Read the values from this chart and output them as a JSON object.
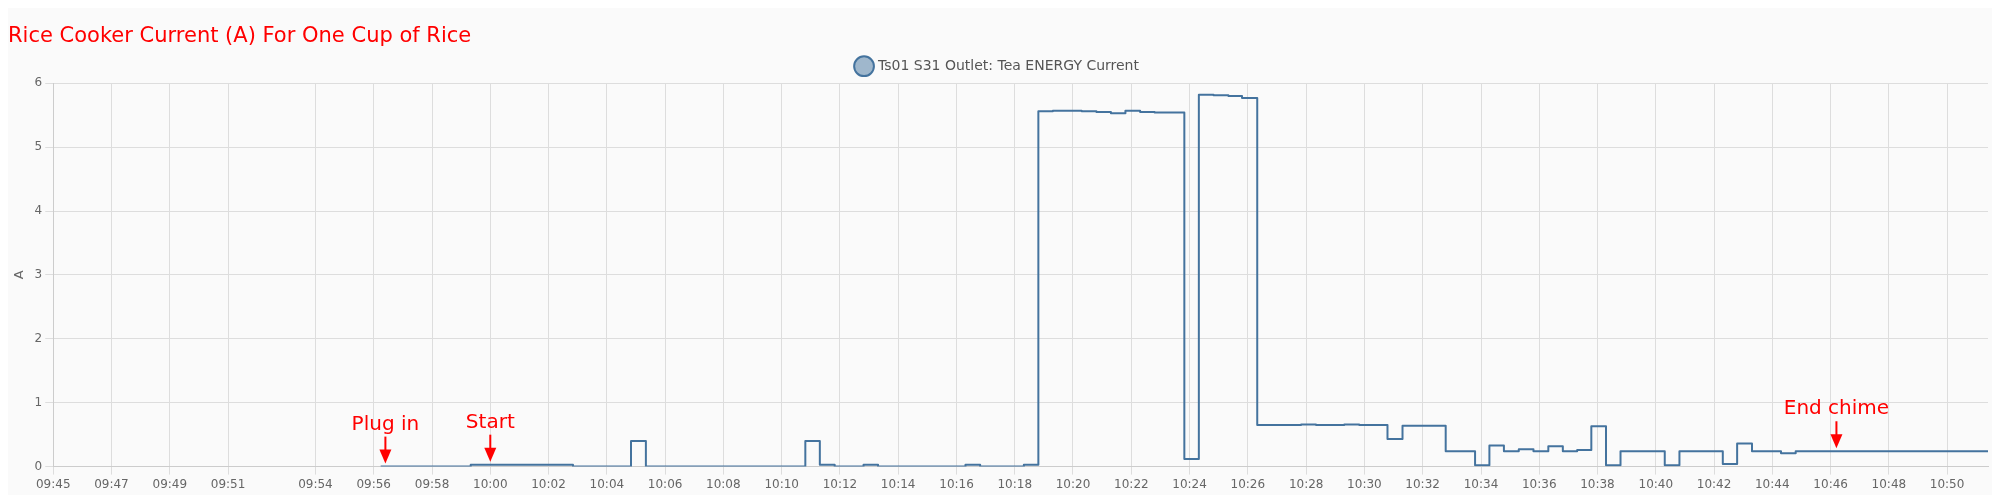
{
  "chart_data": {
    "type": "step",
    "title": "Rice Cooker Current (A) For One Cup of Rice",
    "ylabel": "A",
    "legend": "top",
    "grid": true,
    "marker": "none",
    "line_style": "solid",
    "xlim": [
      9.75,
      10.8567
    ],
    "ylim": [
      0,
      6
    ],
    "yticks": [
      0,
      1,
      2,
      3,
      4,
      5,
      6
    ],
    "xticks": [
      {
        "value": 9.75,
        "label": "09:45"
      },
      {
        "value": 9.7833,
        "label": "09:47"
      },
      {
        "value": 9.8167,
        "label": "09:49"
      },
      {
        "value": 9.85,
        "label": "09:51"
      },
      {
        "value": 9.9,
        "label": "09:54"
      },
      {
        "value": 9.9333,
        "label": "09:56"
      },
      {
        "value": 9.9667,
        "label": "09:58"
      },
      {
        "value": 10,
        "label": "10:00"
      },
      {
        "value": 10.0333,
        "label": "10:02"
      },
      {
        "value": 10.0667,
        "label": "10:04"
      },
      {
        "value": 10.1,
        "label": "10:06"
      },
      {
        "value": 10.1333,
        "label": "10:08"
      },
      {
        "value": 10.1667,
        "label": "10:10"
      },
      {
        "value": 10.2,
        "label": "10:12"
      },
      {
        "value": 10.2333,
        "label": "10:14"
      },
      {
        "value": 10.2667,
        "label": "10:16"
      },
      {
        "value": 10.3,
        "label": "10:18"
      },
      {
        "value": 10.3333,
        "label": "10:20"
      },
      {
        "value": 10.3667,
        "label": "10:22"
      },
      {
        "value": 10.4,
        "label": "10:24"
      },
      {
        "value": 10.4333,
        "label": "10:26"
      },
      {
        "value": 10.4667,
        "label": "10:28"
      },
      {
        "value": 10.5,
        "label": "10:30"
      },
      {
        "value": 10.5333,
        "label": "10:32"
      },
      {
        "value": 10.5667,
        "label": "10:34"
      },
      {
        "value": 10.6,
        "label": "10:36"
      },
      {
        "value": 10.6333,
        "label": "10:38"
      },
      {
        "value": 10.6667,
        "label": "10:40"
      },
      {
        "value": 10.7,
        "label": "10:42"
      },
      {
        "value": 10.7333,
        "label": "10:44"
      },
      {
        "value": 10.7667,
        "label": "10:46"
      },
      {
        "value": 10.8,
        "label": "10:48"
      },
      {
        "value": 10.8333,
        "label": "10:50"
      }
    ],
    "series": [
      {
        "name": "Ts01 S31 Outlet: Tea ENERGY Current",
        "color": "#44739e",
        "x": [
          9.9373,
          9.9888,
          10.0473,
          10.0805,
          10.089,
          10.1802,
          10.1885,
          10.197,
          10.2135,
          10.2218,
          10.2718,
          10.2802,
          10.3052,
          10.3135,
          10.3218,
          10.3383,
          10.3467,
          10.355,
          10.3633,
          10.3717,
          10.38,
          10.397,
          10.4053,
          10.4137,
          10.4222,
          10.43,
          10.4387,
          10.4638,
          10.4723,
          10.4885,
          10.497,
          10.5132,
          10.5218,
          10.5465,
          10.5633,
          10.5715,
          10.5798,
          10.5883,
          10.5967,
          10.6052,
          10.6135,
          10.6217,
          10.6298,
          10.6382,
          10.6465,
          10.6718,
          10.6802,
          10.705,
          10.7132,
          10.7217,
          10.7383,
          10.7467,
          10.8567
        ],
        "values": [
          0,
          0.03,
          0,
          0.4,
          0,
          0.4,
          0.03,
          0,
          0.03,
          0,
          0.03,
          0,
          0.03,
          5.56,
          5.57,
          5.56,
          5.55,
          5.53,
          5.57,
          5.55,
          5.54,
          0.12,
          5.82,
          5.81,
          5.8,
          5.77,
          0.65,
          0.66,
          0.65,
          0.66,
          0.65,
          0.43,
          0.64,
          0.24,
          0.02,
          0.33,
          0.24,
          0.27,
          0.24,
          0.32,
          0.24,
          0.26,
          0.63,
          0.02,
          0.24,
          0.02,
          0.24,
          0.04,
          0.36,
          0.24,
          0.21,
          0.24,
          0.24
        ]
      }
    ],
    "annotations": [
      {
        "text": "Plug in",
        "x": 9.94,
        "y": 0
      },
      {
        "text": "Start",
        "x": 10.0,
        "y": 0.03
      },
      {
        "text": "End chime",
        "x": 10.77,
        "y": 0.24
      }
    ]
  }
}
